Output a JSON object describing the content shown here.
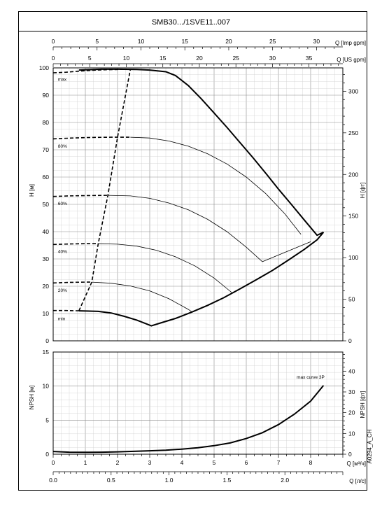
{
  "title": "SMB30.../1SVE11..007",
  "code": "A0294_A_CH",
  "axes": {
    "imp_gpm": {
      "label": "Q [Imp gpm]",
      "ticks": [
        0,
        5,
        10,
        15,
        20,
        25,
        30
      ]
    },
    "us_gpm": {
      "label": "Q [US gpm]",
      "ticks": [
        0,
        5,
        10,
        15,
        20,
        25,
        30,
        35
      ]
    },
    "q_m3h": {
      "label": "Q [м³/ч]",
      "ticks": [
        0,
        1,
        2,
        3,
        4,
        5,
        6,
        7,
        8
      ]
    },
    "q_ls": {
      "label": "Q [л/с]",
      "ticks": [
        "0.0",
        "0.5",
        "1.0",
        "1.5",
        "2.0"
      ]
    },
    "h_m": {
      "label": "H [м]",
      "ticks": [
        0,
        10,
        20,
        30,
        40,
        50,
        60,
        70,
        80,
        90,
        100
      ]
    },
    "h_ft": {
      "label": "H [фт]",
      "ticks": [
        0,
        50,
        100,
        150,
        200,
        250,
        300
      ]
    },
    "npsh_m": {
      "label": "NPSH [м]",
      "ticks": [
        0,
        5,
        10,
        15
      ]
    },
    "npsh_ft": {
      "label": "NPSH [фт]",
      "ticks": [
        0,
        10,
        20,
        30,
        40
      ]
    }
  },
  "chart_data": [
    {
      "type": "line",
      "xlabel": "Q [м³/ч]",
      "ylabel": "H [м]",
      "xlim": [
        0,
        9
      ],
      "ylim": [
        0,
        100
      ],
      "series": [
        {
          "name": "max",
          "style": "thick",
          "x": [
            0.8,
            1.5,
            2.0,
            2.6,
            3.0,
            3.5,
            3.8,
            4.2,
            4.6,
            5.0,
            5.4,
            5.8,
            6.2,
            6.6,
            7.0,
            7.4,
            7.8,
            8.2,
            8.4
          ],
          "y": [
            99.2,
            99.5,
            99.5,
            99.4,
            99.2,
            98.6,
            97.2,
            93.5,
            88.7,
            83.5,
            78.2,
            72.7,
            67.2,
            61.5,
            55.6,
            50.0,
            44.3,
            38.7,
            39.8
          ]
        },
        {
          "name": "80%",
          "style": "thin",
          "x": [
            2.4,
            3.0,
            3.6,
            4.2,
            4.8,
            5.4,
            6.0,
            6.6,
            7.2,
            7.7
          ],
          "y": [
            74.6,
            74.3,
            73.2,
            71.3,
            68.5,
            64.8,
            60.0,
            54.0,
            46.5,
            39.0
          ]
        },
        {
          "name": "60%",
          "style": "thin",
          "x": [
            1.7,
            2.4,
            3.0,
            3.6,
            4.2,
            4.8,
            5.4,
            6.0,
            6.5,
            8.0
          ],
          "y": [
            53.3,
            53.1,
            52.2,
            50.5,
            48.0,
            44.5,
            40.0,
            34.3,
            29.0,
            36.3
          ]
        },
        {
          "name": "40%",
          "style": "thin",
          "x": [
            1.4,
            2.0,
            2.6,
            3.2,
            3.8,
            4.4,
            5.0,
            5.55
          ],
          "y": [
            35.6,
            35.4,
            34.7,
            33.2,
            30.8,
            27.5,
            23.0,
            17.7
          ]
        },
        {
          "name": "20%",
          "style": "thin",
          "x": [
            1.2,
            1.8,
            2.4,
            3.0,
            3.6,
            4.2,
            4.3
          ],
          "y": [
            21.5,
            21.1,
            20.1,
            18.3,
            15.4,
            11.5,
            10.7
          ]
        },
        {
          "name": "min",
          "style": "thick",
          "x": [
            0.8,
            1.4,
            1.8,
            2.2,
            2.6,
            2.9,
            3.05,
            3.3,
            3.8,
            4.3,
            4.8,
            5.3,
            5.8,
            6.3,
            6.8,
            7.3,
            7.8,
            8.2,
            8.4
          ],
          "y": [
            11.0,
            10.8,
            10.2,
            9.0,
            7.6,
            6.2,
            5.5,
            6.4,
            8.2,
            10.5,
            13.0,
            15.8,
            19.0,
            22.3,
            25.7,
            29.5,
            33.5,
            37.0,
            39.8
          ]
        },
        {
          "name": "max-low-flow",
          "style": "dash",
          "x": [
            0,
            0.4,
            0.8,
            1.2,
            1.6,
            2.0,
            2.3
          ],
          "y": [
            98.2,
            98.4,
            98.8,
            99.1,
            99.3,
            99.4,
            99.5
          ]
        },
        {
          "name": "80%-low-flow",
          "style": "dash",
          "x": [
            0,
            0.6,
            1.2,
            1.8,
            2.4
          ],
          "y": [
            74.0,
            74.3,
            74.5,
            74.6,
            74.6
          ]
        },
        {
          "name": "60%-low-flow",
          "style": "dash",
          "x": [
            0,
            0.5,
            1.0,
            1.7
          ],
          "y": [
            52.9,
            53.1,
            53.2,
            53.3
          ]
        },
        {
          "name": "40%-low-flow",
          "style": "dash",
          "x": [
            0,
            0.5,
            1.0,
            1.4
          ],
          "y": [
            35.3,
            35.5,
            35.6,
            35.6
          ]
        },
        {
          "name": "20%-low-flow",
          "style": "dash",
          "x": [
            0,
            0.5,
            1.0,
            1.2
          ],
          "y": [
            21.2,
            21.4,
            21.5,
            21.5
          ]
        },
        {
          "name": "min-low-flow",
          "style": "dash",
          "x": [
            0,
            0.4,
            0.8
          ],
          "y": [
            11.1,
            11.1,
            11.0
          ]
        },
        {
          "name": "minimum-flow-limit",
          "style": "dash",
          "x": [
            0.8,
            1.2,
            1.4,
            1.7,
            2.0,
            2.4
          ],
          "y": [
            11.0,
            21.5,
            35.6,
            53.3,
            74.6,
            99.5
          ]
        }
      ],
      "labels": [
        {
          "text": "max",
          "x": 0.15,
          "y": 95.2
        },
        {
          "text": "80%",
          "x": 0.15,
          "y": 70.8
        },
        {
          "text": "60%",
          "x": 0.15,
          "y": 49.8
        },
        {
          "text": "40%",
          "x": 0.15,
          "y": 32.2
        },
        {
          "text": "20%",
          "x": 0.15,
          "y": 18.0
        },
        {
          "text": "min",
          "x": 0.15,
          "y": 7.6
        }
      ]
    },
    {
      "type": "line",
      "xlabel": "Q [м³/ч]",
      "ylabel": "NPSH [м]",
      "xlim": [
        0,
        9
      ],
      "ylim": [
        0,
        15
      ],
      "series": [
        {
          "name": "max curve 3P",
          "style": "thick",
          "x": [
            0,
            0.5,
            1.0,
            1.5,
            2.0,
            2.5,
            3.0,
            3.5,
            4.0,
            4.5,
            5.0,
            5.5,
            6.0,
            6.5,
            7.0,
            7.5,
            8.0,
            8.4
          ],
          "y": [
            0.4,
            0.3,
            0.28,
            0.3,
            0.35,
            0.42,
            0.5,
            0.6,
            0.75,
            0.95,
            1.25,
            1.65,
            2.3,
            3.15,
            4.35,
            5.9,
            7.8,
            10.1
          ]
        }
      ],
      "labels": [
        {
          "text": "max curve 3P",
          "x": 8.0,
          "y": 11.1
        }
      ]
    }
  ]
}
